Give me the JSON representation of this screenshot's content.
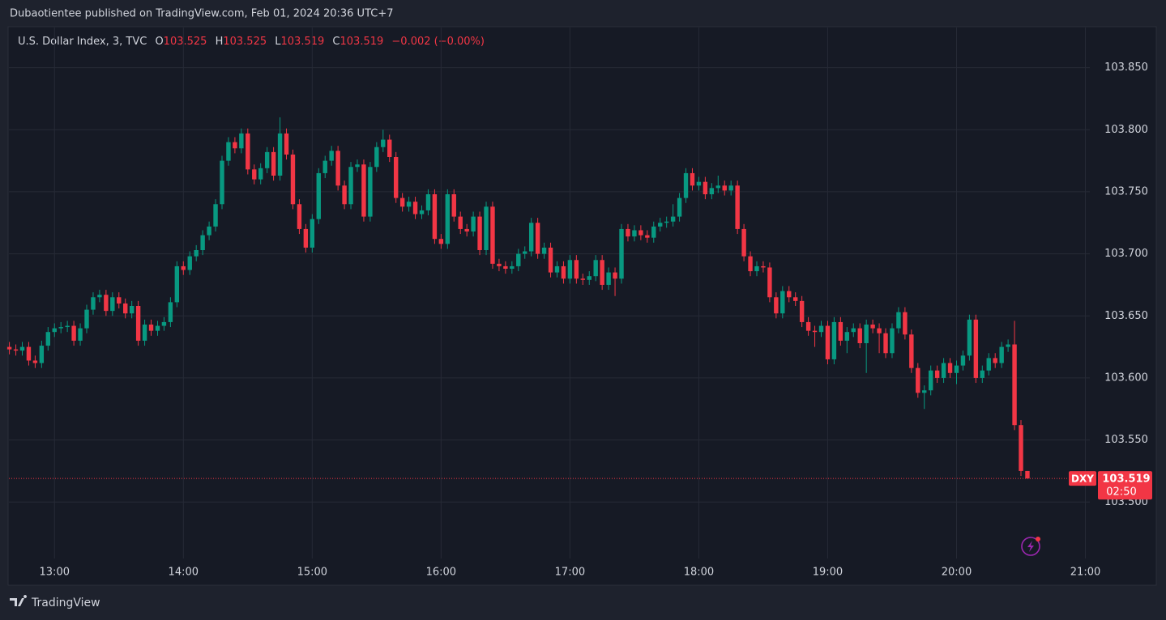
{
  "header": {
    "publisher": "Dubaotientee published on TradingView.com, Feb 01, 2024 20:36 UTC+7",
    "brand": "TradingView"
  },
  "legend": {
    "symbol": "U.S. Dollar Index, 3, TVC",
    "o": "O",
    "h": "H",
    "l": "L",
    "c": "C",
    "change": "−0.002 (−0.00%)"
  },
  "price_tag": {
    "ticker": "DXY",
    "countdown": "02:50"
  },
  "chart_data": {
    "type": "candlestick",
    "up_color": "#089981",
    "down_color": "#f23645",
    "grid": true,
    "xlim": [
      12.64,
      21.55
    ],
    "xticks": [
      {
        "value": 13,
        "label": "13:00"
      },
      {
        "value": 14,
        "label": "14:00"
      },
      {
        "value": 15,
        "label": "15:00"
      },
      {
        "value": 16,
        "label": "16:00"
      },
      {
        "value": 17,
        "label": "17:00"
      },
      {
        "value": 18,
        "label": "18:00"
      },
      {
        "value": 19,
        "label": "19:00"
      },
      {
        "value": 20,
        "label": "20:00"
      },
      {
        "value": 21,
        "label": "21:00"
      }
    ],
    "ylim": [
      103.433,
      103.883
    ],
    "yticks": [
      {
        "value": 103.5,
        "label": "103.500"
      },
      {
        "value": 103.55,
        "label": "103.550"
      },
      {
        "value": 103.6,
        "label": "103.600"
      },
      {
        "value": 103.65,
        "label": "103.650"
      },
      {
        "value": 103.7,
        "label": "103.700"
      },
      {
        "value": 103.75,
        "label": "103.750"
      },
      {
        "value": 103.8,
        "label": "103.800"
      },
      {
        "value": 103.85,
        "label": "103.850"
      }
    ],
    "x": [
      12.65,
      12.7,
      12.75,
      12.8,
      12.85,
      12.9,
      12.95,
      13,
      13.05,
      13.1,
      13.15,
      13.2,
      13.25,
      13.3,
      13.35,
      13.4,
      13.45,
      13.5,
      13.55,
      13.6,
      13.65,
      13.7,
      13.75,
      13.8,
      13.85,
      13.9,
      13.95,
      14,
      14.05,
      14.1,
      14.15,
      14.2,
      14.25,
      14.3,
      14.35,
      14.4,
      14.45,
      14.5,
      14.55,
      14.6,
      14.65,
      14.7,
      14.75,
      14.8,
      14.85,
      14.9,
      14.95,
      15,
      15.05,
      15.1,
      15.15,
      15.2,
      15.25,
      15.3,
      15.35,
      15.4,
      15.45,
      15.5,
      15.55,
      15.6,
      15.65,
      15.7,
      15.75,
      15.8,
      15.85,
      15.9,
      15.95,
      16,
      16.05,
      16.1,
      16.15,
      16.2,
      16.25,
      16.3,
      16.35,
      16.4,
      16.45,
      16.5,
      16.55,
      16.6,
      16.65,
      16.7,
      16.75,
      16.8,
      16.85,
      16.9,
      16.95,
      17,
      17.05,
      17.1,
      17.15,
      17.2,
      17.25,
      17.3,
      17.35,
      17.4,
      17.45,
      17.5,
      17.55,
      17.6,
      17.65,
      17.7,
      17.75,
      17.8,
      17.85,
      17.9,
      17.95,
      18,
      18.05,
      18.1,
      18.15,
      18.2,
      18.25,
      18.3,
      18.35,
      18.4,
      18.45,
      18.5,
      18.55,
      18.6,
      18.65,
      18.7,
      18.75,
      18.8,
      18.85,
      18.9,
      18.95,
      19,
      19.05,
      19.1,
      19.15,
      19.2,
      19.25,
      19.3,
      19.35,
      19.4,
      19.45,
      19.5,
      19.55,
      19.6,
      19.65,
      19.7,
      19.75,
      19.8,
      19.85,
      19.9,
      19.95,
      20,
      20.05,
      20.1,
      20.15,
      20.2,
      20.25,
      20.3,
      20.35,
      20.4,
      20.45,
      20.5,
      20.55
    ],
    "open": [
      103.625,
      103.623,
      103.622,
      103.625,
      103.614,
      103.612,
      103.626,
      103.637,
      103.64,
      103.641,
      103.642,
      103.63,
      103.64,
      103.655,
      103.665,
      103.667,
      103.654,
      103.665,
      103.66,
      103.652,
      103.658,
      103.63,
      103.643,
      103.638,
      103.642,
      103.645,
      103.661,
      103.69,
      103.687,
      103.698,
      103.703,
      103.715,
      103.722,
      103.74,
      103.775,
      103.79,
      103.785,
      103.797,
      103.768,
      103.76,
      103.769,
      103.782,
      103.763,
      103.797,
      103.78,
      103.74,
      103.72,
      103.705,
      103.728,
      103.765,
      103.775,
      103.783,
      103.755,
      103.74,
      103.77,
      103.772,
      103.73,
      103.77,
      103.786,
      103.792,
      103.778,
      103.745,
      103.738,
      103.742,
      103.732,
      103.735,
      103.748,
      103.712,
      103.708,
      103.748,
      103.73,
      103.72,
      103.718,
      103.73,
      103.703,
      103.738,
      103.692,
      103.69,
      103.688,
      103.69,
      103.7,
      103.702,
      103.725,
      103.7,
      103.705,
      103.685,
      103.69,
      103.68,
      103.695,
      103.68,
      103.679,
      103.682,
      103.695,
      103.675,
      103.685,
      103.68,
      103.72,
      103.714,
      103.719,
      103.715,
      103.713,
      103.722,
      103.725,
      103.726,
      103.73,
      103.745,
      103.765,
      103.755,
      103.758,
      103.748,
      103.753,
      103.755,
      103.751,
      103.755,
      103.72,
      103.698,
      103.686,
      103.69,
      103.689,
      103.665,
      103.652,
      103.67,
      103.665,
      103.662,
      103.645,
      103.638,
      103.637,
      103.642,
      103.615,
      103.645,
      103.63,
      103.637,
      103.64,
      103.628,
      103.643,
      103.64,
      103.636,
      103.62,
      103.64,
      103.653,
      103.635,
      103.608,
      103.588,
      103.59,
      103.606,
      103.6,
      103.612,
      103.604,
      103.61,
      103.618,
      103.647,
      103.6,
      103.606,
      103.616,
      103.612,
      103.625,
      103.627,
      103.562,
      103.525
    ],
    "high": [
      103.629,
      103.627,
      103.629,
      103.629,
      103.618,
      103.63,
      103.641,
      103.644,
      103.645,
      103.646,
      103.646,
      103.644,
      103.659,
      103.669,
      103.671,
      103.671,
      103.669,
      103.669,
      103.664,
      103.662,
      103.662,
      103.647,
      103.647,
      103.646,
      103.649,
      103.665,
      103.694,
      103.694,
      103.702,
      103.707,
      103.719,
      103.726,
      103.744,
      103.779,
      103.794,
      103.794,
      103.801,
      103.801,
      103.772,
      103.773,
      103.786,
      103.786,
      103.81,
      103.801,
      103.784,
      103.744,
      103.724,
      103.732,
      103.769,
      103.779,
      103.787,
      103.787,
      103.759,
      103.774,
      103.776,
      103.776,
      103.774,
      103.79,
      103.8,
      103.796,
      103.782,
      103.749,
      103.746,
      103.746,
      103.739,
      103.752,
      103.752,
      103.716,
      103.752,
      103.752,
      103.734,
      103.724,
      103.734,
      103.734,
      103.742,
      103.742,
      103.696,
      103.694,
      103.694,
      103.704,
      103.706,
      103.729,
      103.729,
      103.709,
      103.709,
      103.694,
      103.694,
      103.699,
      103.699,
      103.684,
      103.686,
      103.699,
      103.699,
      103.689,
      103.689,
      103.724,
      103.724,
      103.723,
      103.723,
      103.719,
      103.726,
      103.729,
      103.73,
      103.74,
      103.749,
      103.769,
      103.769,
      103.762,
      103.762,
      103.757,
      103.763,
      103.759,
      103.759,
      103.759,
      103.724,
      103.702,
      103.694,
      103.694,
      103.693,
      103.669,
      103.674,
      103.674,
      103.669,
      103.666,
      103.649,
      103.642,
      103.646,
      103.646,
      103.649,
      103.649,
      103.641,
      103.644,
      103.644,
      103.647,
      103.647,
      103.644,
      103.64,
      103.644,
      103.657,
      103.657,
      103.639,
      103.612,
      103.594,
      103.61,
      103.61,
      103.616,
      103.616,
      103.614,
      103.622,
      103.651,
      103.651,
      103.61,
      103.62,
      103.62,
      103.629,
      103.631,
      103.646,
      103.566,
      103.525
    ],
    "low": [
      103.619,
      103.618,
      103.618,
      103.61,
      103.608,
      103.608,
      103.622,
      103.633,
      103.636,
      103.637,
      103.626,
      103.626,
      103.636,
      103.651,
      103.661,
      103.65,
      103.65,
      103.656,
      103.648,
      103.648,
      103.626,
      103.626,
      103.634,
      103.634,
      103.638,
      103.641,
      103.657,
      103.683,
      103.683,
      103.694,
      103.699,
      103.711,
      103.718,
      103.736,
      103.771,
      103.781,
      103.781,
      103.764,
      103.756,
      103.756,
      103.765,
      103.759,
      103.759,
      103.776,
      103.736,
      103.716,
      103.701,
      103.701,
      103.724,
      103.761,
      103.771,
      103.751,
      103.736,
      103.736,
      103.766,
      103.726,
      103.726,
      103.766,
      103.782,
      103.774,
      103.741,
      103.734,
      103.734,
      103.728,
      103.728,
      103.731,
      103.708,
      103.704,
      103.704,
      103.726,
      103.716,
      103.714,
      103.714,
      103.699,
      103.699,
      103.688,
      103.686,
      103.684,
      103.684,
      103.686,
      103.696,
      103.698,
      103.696,
      103.696,
      103.681,
      103.681,
      103.676,
      103.676,
      103.676,
      103.675,
      103.675,
      103.678,
      103.671,
      103.671,
      103.666,
      103.676,
      103.71,
      103.71,
      103.711,
      103.709,
      103.709,
      103.718,
      103.721,
      103.722,
      103.726,
      103.741,
      103.751,
      103.751,
      103.744,
      103.744,
      103.749,
      103.747,
      103.747,
      103.716,
      103.694,
      103.682,
      103.682,
      103.685,
      103.661,
      103.648,
      103.648,
      103.661,
      103.658,
      103.641,
      103.634,
      103.625,
      103.633,
      103.611,
      103.611,
      103.626,
      103.62,
      103.633,
      103.624,
      103.604,
      103.636,
      103.62,
      103.616,
      103.616,
      103.636,
      103.631,
      103.604,
      103.584,
      103.575,
      103.586,
      103.596,
      103.596,
      103.6,
      103.595,
      103.606,
      103.614,
      103.596,
      103.596,
      103.602,
      103.608,
      103.608,
      103.621,
      103.558,
      103.521,
      103.519
    ],
    "close": [
      103.623,
      103.622,
      103.625,
      103.614,
      103.612,
      103.626,
      103.637,
      103.64,
      103.641,
      103.642,
      103.63,
      103.64,
      103.655,
      103.665,
      103.667,
      103.654,
      103.665,
      103.66,
      103.652,
      103.658,
      103.63,
      103.643,
      103.638,
      103.642,
      103.645,
      103.661,
      103.69,
      103.687,
      103.698,
      103.703,
      103.715,
      103.722,
      103.74,
      103.775,
      103.79,
      103.785,
      103.797,
      103.768,
      103.76,
      103.769,
      103.782,
      103.763,
      103.797,
      103.78,
      103.74,
      103.72,
      103.705,
      103.728,
      103.765,
      103.775,
      103.783,
      103.755,
      103.74,
      103.77,
      103.772,
      103.73,
      103.77,
      103.786,
      103.792,
      103.778,
      103.745,
      103.738,
      103.742,
      103.732,
      103.735,
      103.748,
      103.712,
      103.708,
      103.748,
      103.73,
      103.72,
      103.718,
      103.73,
      103.703,
      103.738,
      103.692,
      103.69,
      103.688,
      103.69,
      103.7,
      103.702,
      103.725,
      103.7,
      103.705,
      103.685,
      103.69,
      103.68,
      103.695,
      103.68,
      103.679,
      103.682,
      103.695,
      103.675,
      103.685,
      103.68,
      103.72,
      103.714,
      103.719,
      103.715,
      103.713,
      103.722,
      103.725,
      103.726,
      103.73,
      103.745,
      103.765,
      103.755,
      103.758,
      103.748,
      103.753,
      103.755,
      103.751,
      103.755,
      103.72,
      103.698,
      103.686,
      103.69,
      103.689,
      103.665,
      103.652,
      103.67,
      103.665,
      103.662,
      103.645,
      103.638,
      103.637,
      103.642,
      103.615,
      103.645,
      103.63,
      103.637,
      103.64,
      103.628,
      103.643,
      103.64,
      103.636,
      103.62,
      103.64,
      103.653,
      103.635,
      103.608,
      103.588,
      103.59,
      103.606,
      103.6,
      103.612,
      103.604,
      103.61,
      103.618,
      103.647,
      103.6,
      103.606,
      103.616,
      103.612,
      103.625,
      103.627,
      103.562,
      103.525,
      103.519
    ]
  }
}
